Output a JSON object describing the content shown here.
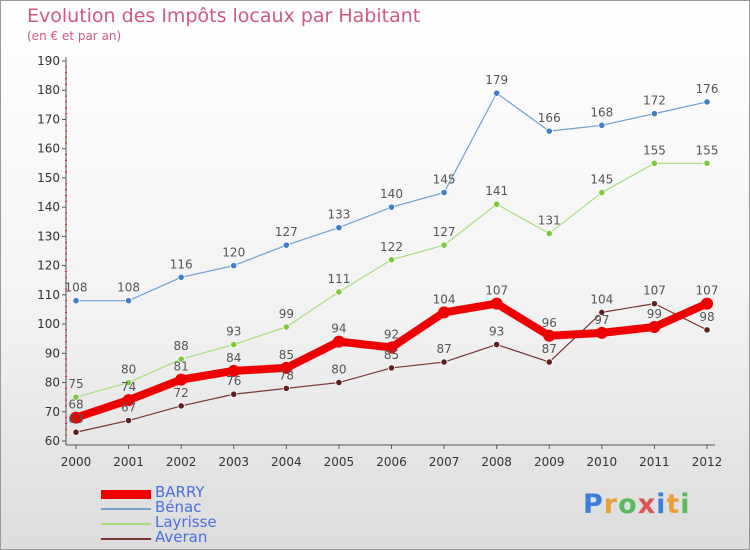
{
  "title": "Evolution des Impôts locaux par Habitant",
  "subtitle": "(en € et par an)",
  "logo": {
    "text": "Proxiti",
    "colors": [
      "#3b7fd9",
      "#e8a03a",
      "#5cb85c",
      "#d9534f",
      "#3b7fd9",
      "#e8a03a",
      "#5cb85c"
    ]
  },
  "chart_data": {
    "type": "line",
    "x": [
      2000,
      2001,
      2002,
      2003,
      2004,
      2005,
      2006,
      2007,
      2008,
      2009,
      2010,
      2011,
      2012
    ],
    "ylim": [
      60,
      190
    ],
    "yticks": [
      60,
      70,
      80,
      90,
      100,
      110,
      120,
      130,
      140,
      150,
      160,
      170,
      180,
      190
    ],
    "grid": false,
    "legend": "bottom-left",
    "series": [
      {
        "name": "Bénac",
        "color": "#6f9fd0",
        "marker": "#3f7fc8",
        "width": 1.2,
        "values": [
          108,
          108,
          116,
          120,
          127,
          133,
          140,
          145,
          179,
          166,
          168,
          172,
          176
        ]
      },
      {
        "name": "Layrisse",
        "color": "#a8dd78",
        "marker": "#80c840",
        "width": 1.2,
        "values": [
          75,
          80,
          88,
          93,
          99,
          111,
          122,
          127,
          141,
          131,
          145,
          155,
          155
        ]
      },
      {
        "name": "Averan",
        "color": "#7a3434",
        "marker": "#602020",
        "width": 1.2,
        "values": [
          63,
          67,
          72,
          76,
          78,
          80,
          85,
          87,
          93,
          87,
          104,
          107,
          98
        ]
      },
      {
        "name": "BARRY",
        "color": "#ee0000",
        "marker": "#ee0000",
        "width": 8,
        "values": [
          68,
          74,
          81,
          84,
          85,
          94,
          92,
          104,
          107,
          96,
          97,
          99,
          107
        ]
      }
    ],
    "data_labels": {
      "Bénac": [
        "108",
        "108",
        "116",
        "120",
        "127",
        "133",
        "140",
        "145",
        "179",
        "166",
        "168",
        "172",
        "176"
      ],
      "Layrisse": [
        "75",
        "80",
        "88",
        "93",
        "99",
        "111",
        "122",
        "127",
        "141",
        "131",
        "145",
        "155",
        "155"
      ],
      "Averan": [
        "63",
        "67",
        "72",
        "76",
        "78",
        "80",
        "85",
        "87",
        "93",
        "87",
        "104",
        "107",
        "98"
      ],
      "BARRY": [
        "68",
        "74",
        "81",
        "84",
        "85",
        "94",
        "92",
        "104",
        "107",
        "96",
        "97",
        "99",
        "107"
      ]
    },
    "legend_order": [
      "BARRY",
      "Bénac",
      "Layrisse",
      "Averan"
    ]
  }
}
